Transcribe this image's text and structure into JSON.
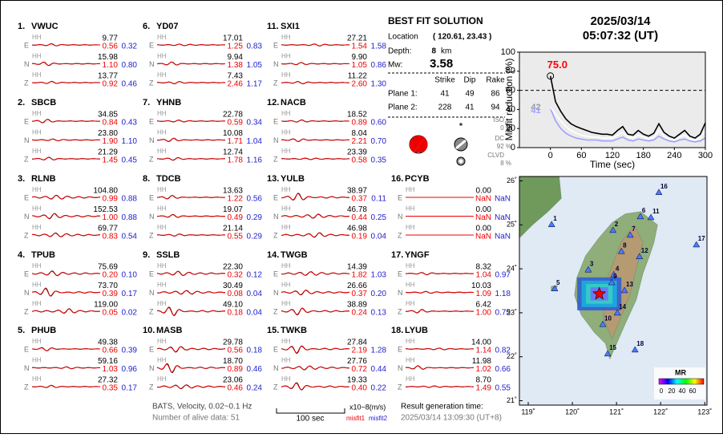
{
  "stations": [
    {
      "num": "1.",
      "name": "VWUC",
      "comps": [
        {
          "ch": "E",
          "band": "HH",
          "amp": "9.77",
          "m1": "0.56",
          "m2": "0.32"
        },
        {
          "ch": "N",
          "band": "HH",
          "amp": "15.98",
          "m1": "1.10",
          "m2": "0.80"
        },
        {
          "ch": "Z",
          "band": "HH",
          "amp": "13.77",
          "m1": "0.92",
          "m2": "0.46"
        }
      ]
    },
    {
      "num": "2.",
      "name": "SBCB",
      "comps": [
        {
          "ch": "E",
          "band": "HH",
          "amp": "34.85",
          "m1": "0.84",
          "m2": "0.43"
        },
        {
          "ch": "N",
          "band": "HH",
          "amp": "23.80",
          "m1": "1.90",
          "m2": "1.10"
        },
        {
          "ch": "Z",
          "band": "HH",
          "amp": "21.29",
          "m1": "1.45",
          "m2": "0.45"
        }
      ]
    },
    {
      "num": "3.",
      "name": "RLNB",
      "comps": [
        {
          "ch": "E",
          "band": "HH",
          "amp": "104.80",
          "m1": "0.99",
          "m2": "0.88"
        },
        {
          "ch": "N",
          "band": "HH",
          "amp": "152.53",
          "m1": "1.00",
          "m2": "0.88"
        },
        {
          "ch": "Z",
          "band": "HH",
          "amp": "69.77",
          "m1": "0.83",
          "m2": "0.54"
        }
      ]
    },
    {
      "num": "4.",
      "name": "TPUB",
      "comps": [
        {
          "ch": "E",
          "band": "HH",
          "amp": "75.69",
          "m1": "0.20",
          "m2": "0.10"
        },
        {
          "ch": "N",
          "band": "HH",
          "amp": "73.70",
          "m1": "0.39",
          "m2": "0.17"
        },
        {
          "ch": "Z",
          "band": "HH",
          "amp": "119.00",
          "m1": "0.05",
          "m2": "0.02"
        }
      ]
    },
    {
      "num": "5.",
      "name": "PHUB",
      "comps": [
        {
          "ch": "E",
          "band": "HH",
          "amp": "49.38",
          "m1": "0.66",
          "m2": "0.39"
        },
        {
          "ch": "N",
          "band": "HH",
          "amp": "59.16",
          "m1": "1.03",
          "m2": "0.96"
        },
        {
          "ch": "Z",
          "band": "HH",
          "amp": "27.32",
          "m1": "0.35",
          "m2": "0.17"
        }
      ]
    },
    {
      "num": "6.",
      "name": "YD07",
      "comps": [
        {
          "ch": "E",
          "band": "HH",
          "amp": "17.01",
          "m1": "1.25",
          "m2": "0.83"
        },
        {
          "ch": "N",
          "band": "HH",
          "amp": "9.94",
          "m1": "1.38",
          "m2": "1.05"
        },
        {
          "ch": "Z",
          "band": "HH",
          "amp": "7.43",
          "m1": "2.46",
          "m2": "1.17"
        }
      ]
    },
    {
      "num": "7.",
      "name": "YHNB",
      "comps": [
        {
          "ch": "E",
          "band": "HH",
          "amp": "22.78",
          "m1": "0.59",
          "m2": "0.34"
        },
        {
          "ch": "N",
          "band": "HH",
          "amp": "10.08",
          "m1": "1.71",
          "m2": "1.04"
        },
        {
          "ch": "Z",
          "band": "HH",
          "amp": "12.74",
          "m1": "1.78",
          "m2": "1.16"
        }
      ]
    },
    {
      "num": "8.",
      "name": "TDCB",
      "comps": [
        {
          "ch": "E",
          "band": "HH",
          "amp": "13.63",
          "m1": "1.22",
          "m2": "0.56"
        },
        {
          "ch": "N",
          "band": "HH",
          "amp": "19.07",
          "m1": "0.49",
          "m2": "0.29"
        },
        {
          "ch": "Z",
          "band": "HH",
          "amp": "21.14",
          "m1": "0.55",
          "m2": "0.29"
        }
      ]
    },
    {
      "num": "9.",
      "name": "SSLB",
      "comps": [
        {
          "ch": "E",
          "band": "HH",
          "amp": "22.30",
          "m1": "0.32",
          "m2": "0.12"
        },
        {
          "ch": "N",
          "band": "HH",
          "amp": "30.49",
          "m1": "0.08",
          "m2": "0.04"
        },
        {
          "ch": "Z",
          "band": "HH",
          "amp": "49.10",
          "m1": "0.18",
          "m2": "0.04"
        }
      ]
    },
    {
      "num": "10.",
      "name": "MASB",
      "comps": [
        {
          "ch": "E",
          "band": "HH",
          "amp": "29.78",
          "m1": "0.56",
          "m2": "0.18"
        },
        {
          "ch": "N",
          "band": "HH",
          "amp": "18.70",
          "m1": "0.89",
          "m2": "0.46"
        },
        {
          "ch": "Z",
          "band": "HH",
          "amp": "23.06",
          "m1": "0.46",
          "m2": "0.24"
        }
      ]
    },
    {
      "num": "11.",
      "name": "SXI1",
      "comps": [
        {
          "ch": "E",
          "band": "HH",
          "amp": "27.21",
          "m1": "1.54",
          "m2": "1.58"
        },
        {
          "ch": "N",
          "band": "HH",
          "amp": "9.90",
          "m1": "1.05",
          "m2": "0.86"
        },
        {
          "ch": "Z",
          "band": "HH",
          "amp": "11.22",
          "m1": "2.60",
          "m2": "1.30"
        }
      ]
    },
    {
      "num": "12.",
      "name": "NACB",
      "comps": [
        {
          "ch": "E",
          "band": "HH",
          "amp": "18.52",
          "m1": "0.89",
          "m2": "0.60"
        },
        {
          "ch": "N",
          "band": "HH",
          "amp": "8.04",
          "m1": "2.21",
          "m2": "0.70"
        },
        {
          "ch": "Z",
          "band": "HH",
          "amp": "23.39",
          "m1": "0.58",
          "m2": "0.35"
        }
      ]
    },
    {
      "num": "13.",
      "name": "YULB",
      "comps": [
        {
          "ch": "E",
          "band": "HH",
          "amp": "38.97",
          "m1": "0.37",
          "m2": "0.11"
        },
        {
          "ch": "N",
          "band": "HH",
          "amp": "46.78",
          "m1": "0.44",
          "m2": "0.25"
        },
        {
          "ch": "Z",
          "band": "HH",
          "amp": "46.98",
          "m1": "0.19",
          "m2": "0.04"
        }
      ]
    },
    {
      "num": "14.",
      "name": "TWGB",
      "comps": [
        {
          "ch": "E",
          "band": "HH",
          "amp": "14.39",
          "m1": "1.82",
          "m2": "1.03"
        },
        {
          "ch": "N",
          "band": "HH",
          "amp": "26.66",
          "m1": "0.37",
          "m2": "0.20"
        },
        {
          "ch": "Z",
          "band": "HH",
          "amp": "38.89",
          "m1": "0.24",
          "m2": "0.13"
        }
      ]
    },
    {
      "num": "15.",
      "name": "TWKB",
      "comps": [
        {
          "ch": "E",
          "band": "HH",
          "amp": "27.84",
          "m1": "2.19",
          "m2": "1.28"
        },
        {
          "ch": "N",
          "band": "HH",
          "amp": "27.76",
          "m1": "0.72",
          "m2": "0.44"
        },
        {
          "ch": "Z",
          "band": "HH",
          "amp": "19.33",
          "m1": "0.40",
          "m2": "0.22"
        }
      ]
    },
    {
      "num": "16.",
      "name": "PCYB",
      "comps": [
        {
          "ch": "E",
          "band": "HH",
          "amp": "0.00",
          "m1": "NaN",
          "m2": "NaN"
        },
        {
          "ch": "N",
          "band": "HH",
          "amp": "0.00",
          "m1": "NaN",
          "m2": "NaN"
        },
        {
          "ch": "Z",
          "band": "HH",
          "amp": "0.00",
          "m1": "NaN",
          "m2": "NaN"
        }
      ]
    },
    {
      "num": "17.",
      "name": "YNGF",
      "comps": [
        {
          "ch": "E",
          "band": "HH",
          "amp": "8.32",
          "m1": "1.04",
          "m2": "0.97"
        },
        {
          "ch": "N",
          "band": "HH",
          "amp": "10.03",
          "m1": "1.09",
          "m2": "1.18"
        },
        {
          "ch": "Z",
          "band": "HH",
          "amp": "6.42",
          "m1": "1.00",
          "m2": "0.75"
        }
      ]
    },
    {
      "num": "18.",
      "name": "LYUB",
      "comps": [
        {
          "ch": "E",
          "band": "HH",
          "amp": "14.00",
          "m1": "1.14",
          "m2": "0.82"
        },
        {
          "ch": "N",
          "band": "HH",
          "amp": "11.98",
          "m1": "1.02",
          "m2": "0.66"
        },
        {
          "ch": "Z",
          "band": "HH",
          "amp": "8.70",
          "m1": "1.49",
          "m2": "0.55"
        }
      ]
    }
  ],
  "solution": {
    "title": "BEST FIT SOLUTION",
    "location_label": "Location",
    "location": "( 120.61, 23.43 )",
    "depth_label": "Depth:",
    "depth": "8",
    "depth_unit": "km",
    "mw_label": "Mw:",
    "mw": "3.58",
    "plane_headers": [
      "Strike",
      "Dip",
      "Rake"
    ],
    "planes": [
      {
        "label": "Plane 1:",
        "values": [
          "41",
          "49",
          "86"
        ]
      },
      {
        "label": "Plane 2:",
        "values": [
          "228",
          "41",
          "94"
        ]
      }
    ],
    "components": [
      {
        "name": "ISO",
        "pct": "0 %"
      },
      {
        "name": "DC",
        "pct": "92 %"
      },
      {
        "name": "CLVD",
        "pct": "8 %"
      }
    ]
  },
  "event": {
    "date": "2025/03/14",
    "time": "05:07:32  (UT)"
  },
  "chart_data": {
    "type": "line",
    "ylabel": "Misfit reduction (%)",
    "xlabel": "Time (sec)",
    "x": [
      0,
      10,
      20,
      30,
      40,
      50,
      60,
      70,
      80,
      90,
      100,
      110,
      120,
      130,
      140,
      150,
      160,
      170,
      180,
      190,
      200,
      210,
      220,
      230,
      240,
      250,
      260,
      270,
      280,
      290,
      300
    ],
    "series": [
      {
        "color": "#a0a0ff",
        "values": [
          41,
          28,
          20,
          15,
          12,
          10,
          9,
          8,
          8,
          8,
          7,
          7,
          7,
          9,
          11,
          8,
          7,
          9,
          8,
          7,
          8,
          12,
          9,
          7,
          6,
          8,
          9,
          7,
          6,
          7,
          10
        ]
      },
      {
        "color": "#ffffff",
        "values": [
          42,
          35,
          28,
          22,
          18,
          15,
          13,
          12,
          11,
          11,
          10,
          10,
          10,
          13,
          16,
          11,
          10,
          13,
          11,
          9,
          11,
          18,
          12,
          9,
          8,
          11,
          13,
          9,
          8,
          10,
          18
        ]
      },
      {
        "color": "#000000",
        "values": [
          75,
          48,
          38,
          30,
          25,
          22,
          20,
          18,
          16,
          15,
          14,
          14,
          13,
          18,
          22,
          14,
          13,
          18,
          14,
          12,
          15,
          25,
          16,
          12,
          10,
          14,
          18,
          12,
          10,
          14,
          26
        ]
      }
    ],
    "xlim": [
      -60,
      300
    ],
    "ylim": [
      0,
      100
    ],
    "xticks": [
      0,
      60,
      120,
      180,
      240,
      300
    ],
    "yticks": [
      0,
      20,
      40,
      60,
      80,
      100
    ],
    "reference_line": 60,
    "annotations": [
      {
        "text": "75.0",
        "x": 0,
        "y": 75,
        "color": "#ff0000"
      },
      {
        "text": "42",
        "x": 0,
        "y": 42,
        "color": "#999999"
      },
      {
        "text": "41",
        "x": 0,
        "y": 41,
        "color": "#a0a0ff"
      }
    ]
  },
  "map": {
    "xlim": [
      118.8,
      123.05
    ],
    "ylim": [
      20.9,
      26.1
    ],
    "xticks": [
      {
        "value": 119,
        "label": "119˚"
      },
      {
        "value": 120,
        "label": "120˚"
      },
      {
        "value": 121,
        "label": "121˚"
      },
      {
        "value": 122,
        "label": "122˚"
      },
      {
        "value": 123,
        "label": "123˚"
      }
    ],
    "yticks": [
      {
        "value": 21,
        "label": "21˚"
      },
      {
        "value": 22,
        "label": "22˚"
      },
      {
        "value": 23,
        "label": "23˚"
      },
      {
        "value": 24,
        "label": "24˚"
      },
      {
        "value": 25,
        "label": "25˚"
      },
      {
        "value": 26,
        "label": "26˚"
      }
    ],
    "epicenter": {
      "lon": 120.61,
      "lat": 23.43
    },
    "stations": [
      {
        "label": "1",
        "lon": 119.53,
        "lat": 25.01
      },
      {
        "label": "2",
        "lon": 120.92,
        "lat": 24.88
      },
      {
        "label": "3",
        "lon": 120.36,
        "lat": 23.98
      },
      {
        "label": "4",
        "lon": 120.94,
        "lat": 23.87
      },
      {
        "label": "5",
        "lon": 119.6,
        "lat": 23.55
      },
      {
        "label": "6",
        "lon": 121.54,
        "lat": 25.19
      },
      {
        "label": "7",
        "lon": 121.31,
        "lat": 24.77
      },
      {
        "label": "8",
        "lon": 121.11,
        "lat": 24.4
      },
      {
        "label": "9",
        "lon": 120.89,
        "lat": 23.69
      },
      {
        "label": "10",
        "lon": 120.69,
        "lat": 22.74
      },
      {
        "label": "11",
        "lon": 121.78,
        "lat": 25.17
      },
      {
        "label": "12",
        "lon": 121.52,
        "lat": 24.28
      },
      {
        "label": "13",
        "lon": 121.18,
        "lat": 23.51
      },
      {
        "label": "14",
        "lon": 121.02,
        "lat": 23.0
      },
      {
        "label": "15",
        "lon": 120.8,
        "lat": 22.07
      },
      {
        "label": "16",
        "lon": 121.96,
        "lat": 25.74
      },
      {
        "label": "17",
        "lon": 122.81,
        "lat": 24.55
      },
      {
        "label": "18",
        "lon": 121.42,
        "lat": 22.16
      }
    ],
    "colorbar": {
      "title": "MR",
      "ticks": [
        "0",
        "20",
        "40",
        "60"
      ]
    }
  },
  "footer": {
    "filter": "BATS, Velocity, 0.02~0.1 Hz",
    "alive": "Number of alive data: 51",
    "scale": "100 sec",
    "units": "x10−8(m/s)",
    "misfit1": "misfit1",
    "misfit2": "misfit2",
    "gen_label": "Result generation time:",
    "gen_time": "2025/03/14 13:09:30 (UT+8)"
  }
}
